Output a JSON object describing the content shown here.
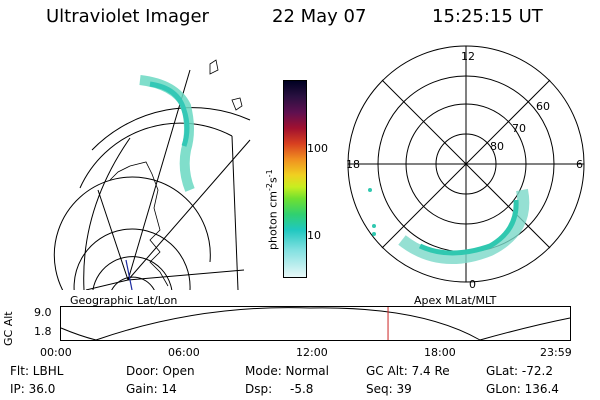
{
  "header": {
    "instrument": "Ultraviolet Imager",
    "date": "22 May 07",
    "time": "15:25:15 UT"
  },
  "left_panel": {
    "label": "Geographic Lat/Lon"
  },
  "right_panel": {
    "label": "Apex MLat/MLT",
    "mlt_labels": [
      "12",
      "18",
      "6",
      "0"
    ],
    "mlat_labels": [
      "60",
      "70",
      "80"
    ]
  },
  "colorbar": {
    "label": "photon cm",
    "label_sup1": "-2",
    "label_mid": "s",
    "label_sup2": "-1",
    "tick_labels": [
      "100",
      "10"
    ]
  },
  "altitude_plot": {
    "ylabel": "GC Alt",
    "ytick_top": "9.0",
    "ytick_bottom": "1.8",
    "time_ticks": [
      "00:00",
      "06:00",
      "12:00",
      "18:00",
      "23:59"
    ],
    "marker_color": "#cc2222",
    "current_time_hours": 15.42
  },
  "status": {
    "flt": "Flt: LBHL",
    "ip": "IP: 36.0",
    "door": "Door: Open",
    "gain": "Gain: 14",
    "mode": "Mode: Normal",
    "dsp_label": "Dsp:",
    "dsp_value": "-5.8",
    "gc_alt": "GC Alt: 7.4 Re",
    "seq": "Seq: 39",
    "glat": "GLat: -72.2",
    "glon": "GLon: 136.4"
  }
}
